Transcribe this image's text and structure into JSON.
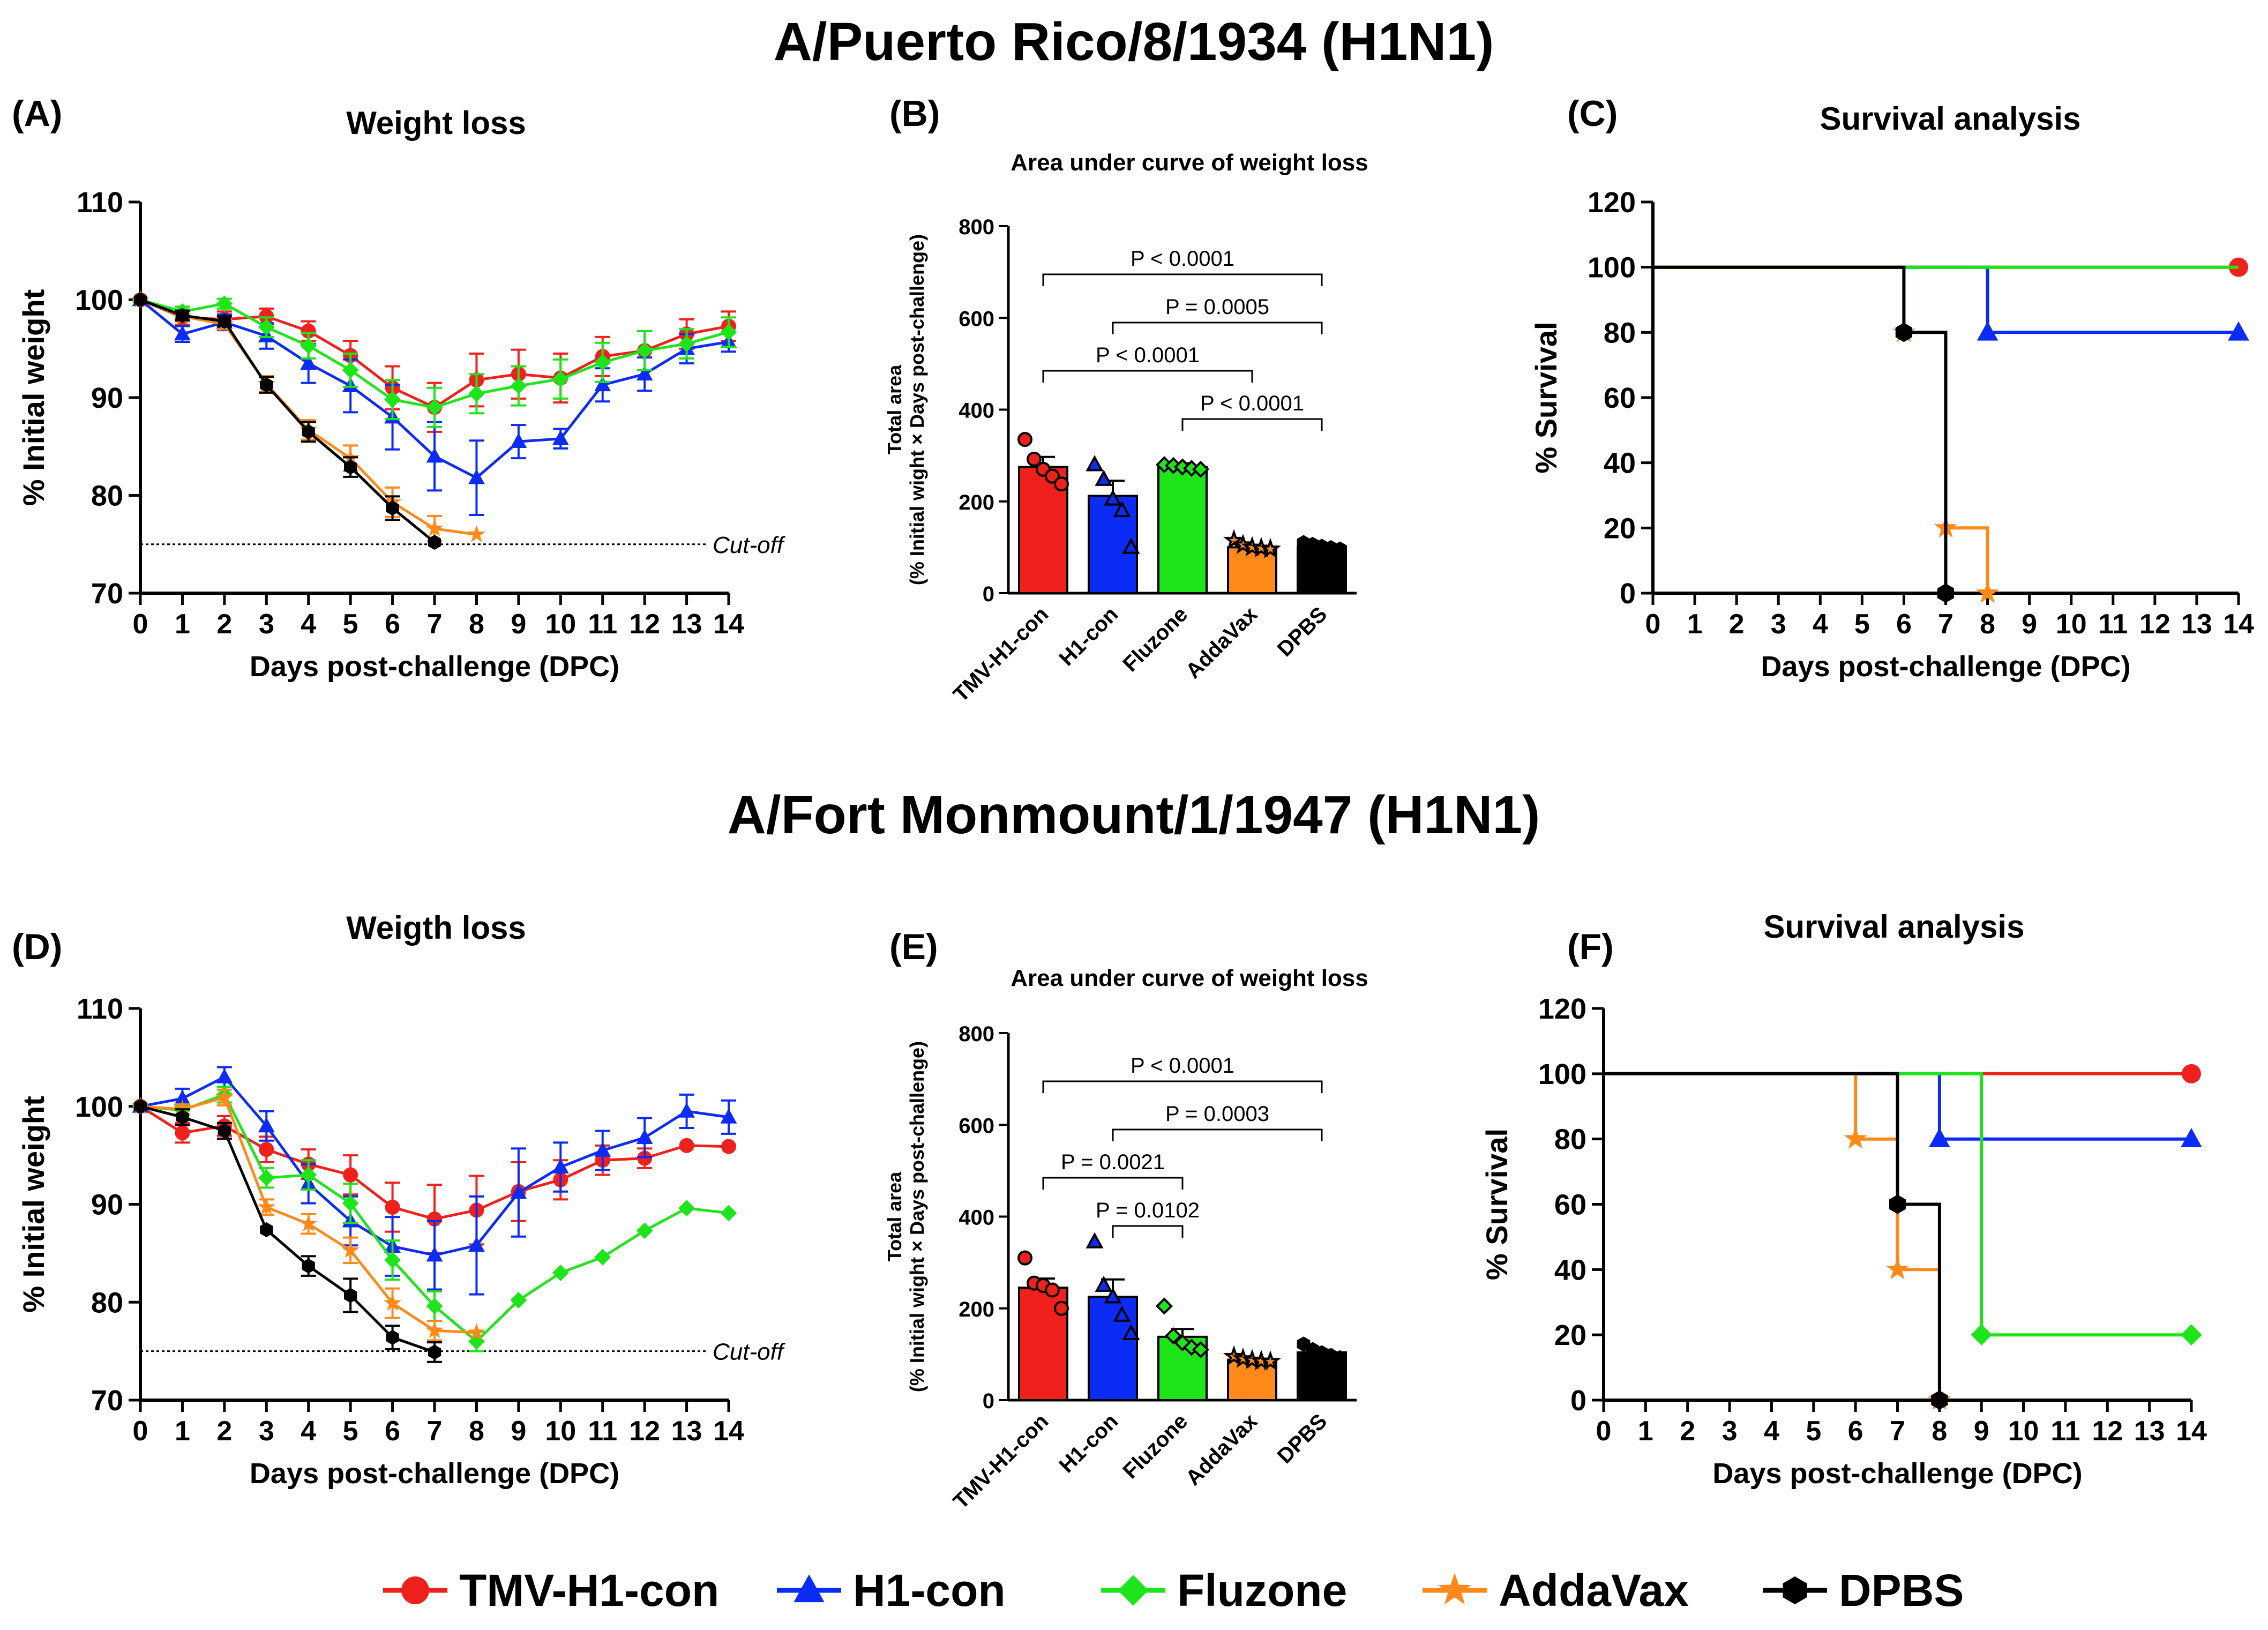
{
  "section_titles": [
    "A/Puerto Rico/8/1934 (H1N1)",
    "A/Fort Monmount/1/1947 (H1N1)"
  ],
  "series_styles": [
    {
      "name": "TMV-H1-con",
      "color": "#f0201c",
      "marker": "circle"
    },
    {
      "name": "H1-con",
      "color": "#0c2cf5",
      "marker": "triangle"
    },
    {
      "name": "Fluzone",
      "color": "#1ee51a",
      "marker": "diamond"
    },
    {
      "name": "AddaVax",
      "color": "#ff8a1a",
      "marker": "star"
    },
    {
      "name": "DPBS",
      "color": "#000000",
      "marker": "hexagon"
    }
  ],
  "legend": [
    "TMV-H1-con",
    "H1-con",
    "Fluzone",
    "AddaVax",
    "DPBS"
  ],
  "chart_data": [
    {
      "panel": "(A)",
      "type": "line",
      "title": "Weight loss",
      "xlabel": "Days post-challenge (DPC)",
      "ylabel": "% Initial weight",
      "xlim": [
        0,
        14
      ],
      "ylim": [
        70,
        110
      ],
      "yticks": [
        70,
        80,
        90,
        100,
        110
      ],
      "xticks": [
        0,
        1,
        2,
        3,
        4,
        5,
        6,
        7,
        8,
        9,
        10,
        11,
        12,
        13,
        14
      ],
      "cutoff": {
        "y": 75,
        "label": "Cut-off"
      },
      "series": [
        {
          "name": "TMV-H1-con",
          "x": [
            0,
            1,
            2,
            3,
            4,
            5,
            6,
            7,
            8,
            9,
            10,
            11,
            12,
            13,
            14
          ],
          "y": [
            100,
            98.2,
            98,
            98.3,
            96.8,
            94.3,
            91,
            89,
            91.8,
            92.4,
            92,
            94.2,
            94.8,
            96.5,
            97.3
          ],
          "err": [
            0,
            0.8,
            0.8,
            0.8,
            1,
            1.5,
            2.2,
            2.5,
            2.7,
            2.5,
            2.5,
            2,
            2,
            1.5,
            1.5
          ]
        },
        {
          "name": "H1-con",
          "x": [
            0,
            1,
            2,
            3,
            4,
            5,
            6,
            7,
            8,
            9,
            10,
            11,
            12,
            13,
            14
          ],
          "y": [
            100,
            96.5,
            97.7,
            96.3,
            93.5,
            91.2,
            88,
            84,
            81.8,
            85.5,
            85.8,
            91.3,
            92.4,
            95,
            95.7
          ],
          "err": [
            0,
            0.8,
            0.8,
            1.3,
            2,
            2.7,
            3.3,
            3.5,
            3.8,
            1.7,
            1,
            1.7,
            1.7,
            1.5,
            1
          ]
        },
        {
          "name": "Fluzone",
          "x": [
            0,
            1,
            2,
            3,
            4,
            5,
            6,
            7,
            8,
            9,
            10,
            11,
            12,
            13,
            14
          ],
          "y": [
            100,
            98.8,
            99.6,
            97.2,
            95.3,
            92.8,
            89.8,
            89,
            90.4,
            91.2,
            91.9,
            93.6,
            94.8,
            95.5,
            96.7
          ],
          "err": [
            0,
            0.5,
            0.5,
            1,
            1.3,
            1.7,
            2,
            2,
            2,
            2,
            2,
            2,
            2,
            1.5,
            1.5
          ]
        },
        {
          "name": "AddaVax",
          "x": [
            0,
            1,
            2,
            3,
            4,
            5,
            6,
            7,
            8
          ],
          "y": [
            100,
            98.3,
            97.5,
            91.4,
            86.7,
            83.8,
            79.3,
            76.6,
            76
          ],
          "err": [
            0,
            0.5,
            0.5,
            0.8,
            1,
            1.3,
            1.5,
            1.3,
            0
          ]
        },
        {
          "name": "DPBS",
          "x": [
            0,
            1,
            2,
            3,
            4,
            5,
            6,
            7
          ],
          "y": [
            100,
            98.4,
            97.8,
            91.3,
            86.5,
            82.9,
            78.7,
            75.2
          ],
          "err": [
            0,
            0.5,
            0.5,
            0.8,
            1,
            1,
            1.2,
            0
          ]
        }
      ]
    },
    {
      "panel": "(B)",
      "type": "bar",
      "title": "Area under curve of weight loss",
      "ylabel_lines": [
        "Total area",
        "(% Initial wight × Days post-challenge)"
      ],
      "ylim": [
        0,
        800
      ],
      "yticks": [
        0,
        200,
        400,
        600,
        800
      ],
      "categories": [
        "TMV-H1-con",
        "H1-con",
        "Fluzone",
        "AddaVax",
        "DPBS"
      ],
      "values": [
        275,
        212,
        275,
        100,
        101
      ],
      "errors": [
        22,
        33,
        8,
        4,
        4
      ],
      "points": [
        [
          335,
          292,
          270,
          255,
          238
        ],
        [
          280,
          248,
          205,
          180,
          100
        ],
        [
          280,
          278,
          275,
          272,
          270
        ],
        [
          115,
          105,
          100,
          98,
          96
        ],
        [
          110,
          106,
          102,
          99,
          96
        ]
      ],
      "brackets": [
        {
          "from": 0,
          "to": 4,
          "label": "P < 0.0001"
        },
        {
          "from": 1,
          "to": 4,
          "label": "P = 0.0005"
        },
        {
          "from": 0,
          "to": 3,
          "label": "P < 0.0001"
        },
        {
          "from": 2,
          "to": 4,
          "label": "P < 0.0001"
        }
      ]
    },
    {
      "panel": "(C)",
      "type": "line",
      "title": "Survival analysis",
      "xlabel": "Days post-challenge (DPC)",
      "ylabel": "% Survival",
      "xlim": [
        0,
        14
      ],
      "ylim": [
        0,
        120
      ],
      "yticks": [
        0,
        20,
        40,
        60,
        80,
        100,
        120
      ],
      "xticks": [
        0,
        1,
        2,
        3,
        4,
        5,
        6,
        7,
        8,
        9,
        10,
        11,
        12,
        13,
        14
      ],
      "series": [
        {
          "name": "TMV-H1-con",
          "steps": [
            [
              0,
              100
            ],
            [
              14,
              100
            ]
          ],
          "markers": [
            [
              14,
              100
            ]
          ]
        },
        {
          "name": "H1-con",
          "steps": [
            [
              0,
              100
            ],
            [
              8,
              100
            ],
            [
              8,
              80
            ],
            [
              14,
              80
            ]
          ],
          "markers": [
            [
              8,
              80
            ],
            [
              14,
              80
            ]
          ]
        },
        {
          "name": "Fluzone",
          "steps": [
            [
              0,
              100
            ],
            [
              14,
              100
            ]
          ],
          "markers": []
        },
        {
          "name": "AddaVax",
          "steps": [
            [
              0,
              100
            ],
            [
              6,
              100
            ],
            [
              6,
              80
            ],
            [
              7,
              80
            ],
            [
              7,
              20
            ],
            [
              8,
              20
            ],
            [
              8,
              0
            ]
          ],
          "markers": [
            [
              6,
              80
            ],
            [
              7,
              20
            ],
            [
              8,
              0
            ]
          ]
        },
        {
          "name": "DPBS",
          "steps": [
            [
              0,
              100
            ],
            [
              6,
              100
            ],
            [
              6,
              80
            ],
            [
              7,
              80
            ],
            [
              7,
              0
            ]
          ],
          "markers": [
            [
              6,
              80
            ],
            [
              7,
              0
            ]
          ]
        }
      ]
    },
    {
      "panel": "(D)",
      "type": "line",
      "title": "Weigth loss",
      "xlabel": "Days post-challenge (DPC)",
      "ylabel": "% Initial weight",
      "xlim": [
        0,
        14
      ],
      "ylim": [
        70,
        110
      ],
      "yticks": [
        70,
        80,
        90,
        100,
        110
      ],
      "xticks": [
        0,
        1,
        2,
        3,
        4,
        5,
        6,
        7,
        8,
        9,
        10,
        11,
        12,
        13,
        14
      ],
      "cutoff": {
        "y": 75,
        "label": "Cut-off"
      },
      "series": [
        {
          "name": "TMV-H1-con",
          "x": [
            0,
            1,
            2,
            3,
            4,
            5,
            6,
            7,
            8,
            9,
            10,
            11,
            12,
            13,
            14
          ],
          "y": [
            100,
            97.3,
            98,
            95.6,
            94.1,
            93,
            89.7,
            88.5,
            89.4,
            91.3,
            92.5,
            94.5,
            94.7,
            96,
            95.9
          ],
          "err": [
            0,
            1,
            1,
            1.3,
            1.5,
            2,
            2.5,
            3.5,
            3.5,
            3,
            2,
            1.5,
            1,
            0,
            0
          ]
        },
        {
          "name": "H1-con",
          "x": [
            0,
            1,
            2,
            3,
            4,
            5,
            6,
            7,
            8,
            9,
            10,
            11,
            12,
            13,
            14
          ],
          "y": [
            100,
            100.8,
            103,
            98,
            92.1,
            88.3,
            85.7,
            84.8,
            85.8,
            91.2,
            93.8,
            95.5,
            96.8,
            99.5,
            98.9
          ],
          "err": [
            0,
            1,
            1,
            1.5,
            2,
            2.5,
            3,
            3.5,
            5,
            4.5,
            2.5,
            2,
            2,
            1.7,
            1.7
          ]
        },
        {
          "name": "Fluzone",
          "x": [
            0,
            1,
            2,
            3,
            4,
            5,
            6,
            7,
            8,
            9,
            10,
            11,
            12,
            13,
            14
          ],
          "y": [
            100,
            99.6,
            101.2,
            92.7,
            93,
            90.1,
            84.3,
            79.6,
            76,
            80.2,
            83,
            84.6,
            87.3,
            89.6,
            89.1
          ],
          "err": [
            0,
            0.5,
            0.8,
            1,
            1.5,
            2,
            2,
            1.5,
            1,
            0,
            0,
            0,
            0,
            0,
            0
          ]
        },
        {
          "name": "AddaVax",
          "x": [
            0,
            1,
            2,
            3,
            4,
            5,
            6,
            7,
            8
          ],
          "y": [
            100,
            99.7,
            100.9,
            89.7,
            88,
            85.3,
            79.9,
            77.1,
            76.9
          ],
          "err": [
            0,
            0.5,
            0.8,
            0.8,
            1,
            1.3,
            1.5,
            1,
            0
          ]
        },
        {
          "name": "DPBS",
          "x": [
            0,
            1,
            2,
            3,
            4,
            5,
            6,
            7
          ],
          "y": [
            100,
            98.9,
            97.5,
            87.4,
            83.7,
            80.7,
            76.4,
            74.9
          ],
          "err": [
            0,
            0.8,
            0.8,
            0,
            1,
            1.7,
            1.2,
            1
          ]
        }
      ]
    },
    {
      "panel": "(E)",
      "type": "bar",
      "title": "Area under curve of weight loss",
      "ylabel_lines": [
        "Total area",
        "(% Initial wight × Days post-challenge)"
      ],
      "ylim": [
        0,
        800
      ],
      "yticks": [
        0,
        200,
        400,
        600,
        800
      ],
      "categories": [
        "TMV-H1-con",
        "H1-con",
        "Fluzone",
        "AddaVax",
        "DPBS"
      ],
      "values": [
        245,
        225,
        138,
        88,
        104
      ],
      "errors": [
        20,
        38,
        17,
        3,
        6
      ],
      "points": [
        [
          310,
          255,
          250,
          240,
          200
        ],
        [
          345,
          250,
          225,
          185,
          145
        ],
        [
          205,
          140,
          125,
          115,
          110
        ],
        [
          95,
          90,
          87,
          85,
          84
        ],
        [
          122,
          110,
          103,
          97,
          92
        ]
      ],
      "brackets": [
        {
          "from": 0,
          "to": 4,
          "label": "P < 0.0001"
        },
        {
          "from": 1,
          "to": 4,
          "label": "P = 0.0003"
        },
        {
          "from": 0,
          "to": 2,
          "label": "P = 0.0021"
        },
        {
          "from": 1,
          "to": 2,
          "label": "P = 0.0102"
        }
      ]
    },
    {
      "panel": "(F)",
      "type": "line",
      "title": "Survival analysis",
      "xlabel": "Days post-challenge (DPC)",
      "ylabel": "% Survival",
      "xlim": [
        0,
        14
      ],
      "ylim": [
        0,
        120
      ],
      "yticks": [
        0,
        20,
        40,
        60,
        80,
        100,
        120
      ],
      "xticks": [
        0,
        1,
        2,
        3,
        4,
        5,
        6,
        7,
        8,
        9,
        10,
        11,
        12,
        13,
        14
      ],
      "series": [
        {
          "name": "TMV-H1-con",
          "steps": [
            [
              0,
              100
            ],
            [
              14,
              100
            ]
          ],
          "markers": [
            [
              14,
              100
            ]
          ]
        },
        {
          "name": "H1-con",
          "steps": [
            [
              0,
              100
            ],
            [
              8,
              100
            ],
            [
              8,
              80
            ],
            [
              14,
              80
            ]
          ],
          "markers": [
            [
              8,
              80
            ],
            [
              14,
              80
            ]
          ]
        },
        {
          "name": "Fluzone",
          "steps": [
            [
              0,
              100
            ],
            [
              9,
              100
            ],
            [
              9,
              20
            ],
            [
              14,
              20
            ]
          ],
          "markers": [
            [
              9,
              20
            ],
            [
              14,
              20
            ]
          ]
        },
        {
          "name": "AddaVax",
          "steps": [
            [
              0,
              100
            ],
            [
              6,
              100
            ],
            [
              6,
              80
            ],
            [
              7,
              80
            ],
            [
              7,
              40
            ],
            [
              8,
              40
            ],
            [
              8,
              0
            ]
          ],
          "markers": [
            [
              6,
              80
            ],
            [
              7,
              40
            ],
            [
              8,
              0
            ]
          ]
        },
        {
          "name": "DPBS",
          "steps": [
            [
              0,
              100
            ],
            [
              7,
              100
            ],
            [
              7,
              60
            ],
            [
              8,
              60
            ],
            [
              8,
              0
            ]
          ],
          "markers": [
            [
              7,
              60
            ],
            [
              8,
              0
            ]
          ]
        }
      ]
    }
  ]
}
